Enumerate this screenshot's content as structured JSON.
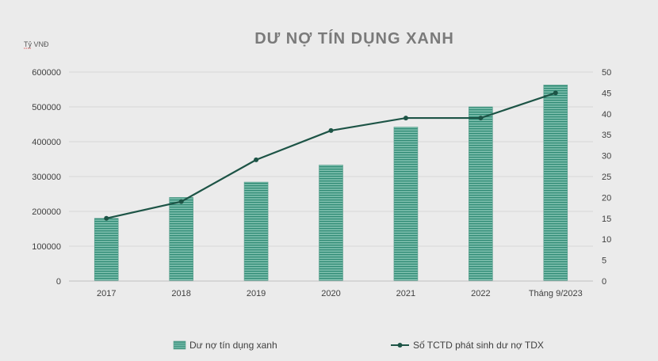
{
  "chart_data": {
    "type": "bar",
    "title": "DƯ NỢ TÍN DỤNG XANH",
    "unit_label": "Tỷ VNĐ",
    "categories": [
      "2017",
      "2018",
      "2019",
      "2020",
      "2021",
      "2022",
      "Tháng 9/2023"
    ],
    "series": [
      {
        "name": "Dư nợ tín dụng xanh",
        "type": "bar",
        "axis": "left",
        "values": [
          180000,
          240000,
          284000,
          333000,
          442000,
          500000,
          563000
        ]
      },
      {
        "name": "Số TCTD phát sinh dư nợ TDX",
        "type": "line",
        "axis": "right",
        "values": [
          15,
          19,
          29,
          36,
          39,
          39,
          45
        ]
      }
    ],
    "y_left": {
      "min": 0,
      "max": 600000,
      "step": 100000
    },
    "y_right": {
      "min": 0,
      "max": 50,
      "step": 5
    },
    "grid": true,
    "legend_position": "bottom",
    "colors": {
      "bar_fill": "#7dbfae",
      "bar_stripe": "#2f8a74",
      "bar_border": "#5a9e8c",
      "line": "#1d5446",
      "grid": "#d7d7d7",
      "title": "#7a7a7a"
    }
  }
}
